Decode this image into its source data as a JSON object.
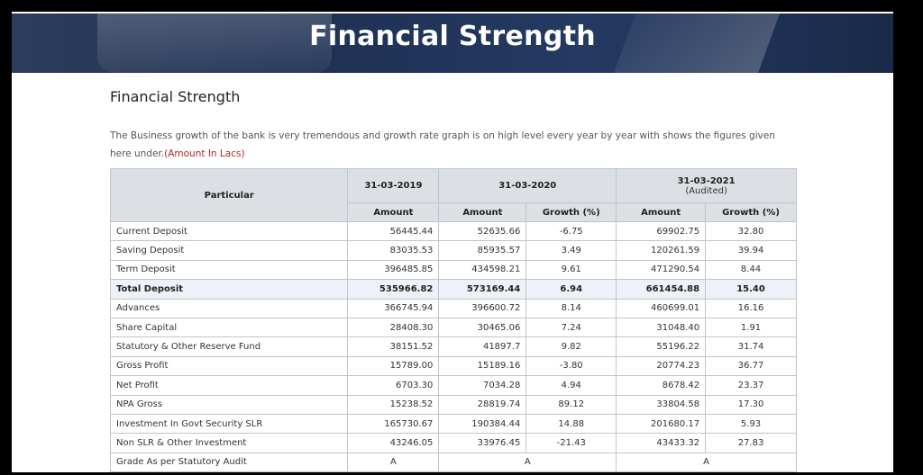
{
  "banner_title": "Financial Strength",
  "heading": "Financial Strength",
  "description": "The Business growth of the bank is very tremendous and growth rate graph is on high level every year by year with shows the figures given here under.",
  "amount_note": "(Amount In Lacs)",
  "table": {
    "particular_header": "Particular",
    "periods": [
      {
        "date": "31-03-2019"
      },
      {
        "date": "31-03-2020"
      },
      {
        "date": "31-03-2021",
        "note": "(Audited)"
      }
    ],
    "col_amount": "Amount",
    "col_growth": "Growth (%)",
    "rows": [
      {
        "label": "Current Deposit",
        "a2019": "56445.44",
        "a2020": "52635.66",
        "g2020": "-6.75",
        "a2021": "69902.75",
        "g2021": "32.80"
      },
      {
        "label": "Saving Deposit",
        "a2019": "83035.53",
        "a2020": "85935.57",
        "g2020": "3.49",
        "a2021": "120261.59",
        "g2021": "39.94"
      },
      {
        "label": "Term Deposit",
        "a2019": "396485.85",
        "a2020": "434598.21",
        "g2020": "9.61",
        "a2021": "471290.54",
        "g2021": "8.44"
      },
      {
        "label": "Total Deposit",
        "a2019": "535966.82",
        "a2020": "573169.44",
        "g2020": "6.94",
        "a2021": "661454.88",
        "g2021": "15.40",
        "total": true
      },
      {
        "label": "Advances",
        "a2019": "366745.94",
        "a2020": "396600.72",
        "g2020": "8.14",
        "a2021": "460699.01",
        "g2021": "16.16"
      },
      {
        "label": "Share Capital",
        "a2019": "28408.30",
        "a2020": "30465.06",
        "g2020": "7.24",
        "a2021": "31048.40",
        "g2021": "1.91"
      },
      {
        "label": "Statutory & Other Reserve Fund",
        "a2019": "38151.52",
        "a2020": "41897.7",
        "g2020": "9.82",
        "a2021": "55196.22",
        "g2021": "31.74"
      },
      {
        "label": "Gross Profit",
        "a2019": "15789.00",
        "a2020": "15189.16",
        "g2020": "-3.80",
        "a2021": "20774.23",
        "g2021": "36.77"
      },
      {
        "label": "Net Profit",
        "a2019": "6703.30",
        "a2020": "7034.28",
        "g2020": "4.94",
        "a2021": "8678.42",
        "g2021": "23.37"
      },
      {
        "label": "NPA Gross",
        "a2019": "15238.52",
        "a2020": "28819.74",
        "g2020": "89.12",
        "a2021": "33804.58",
        "g2021": "17.30"
      },
      {
        "label": "Investment In Govt Security SLR",
        "a2019": "165730.67",
        "a2020": "190384.44",
        "g2020": "14.88",
        "a2021": "201680.17",
        "g2021": "5.93"
      },
      {
        "label": "Non SLR & Other Investment",
        "a2019": "43246.05",
        "a2020": "33976.45",
        "g2020": "-21.43",
        "a2021": "43433.32",
        "g2021": "27.83"
      }
    ],
    "grade_row": {
      "label": "Grade As per Statutory Audit",
      "g2019": "A",
      "g2020": "A",
      "g2021": "A"
    }
  }
}
